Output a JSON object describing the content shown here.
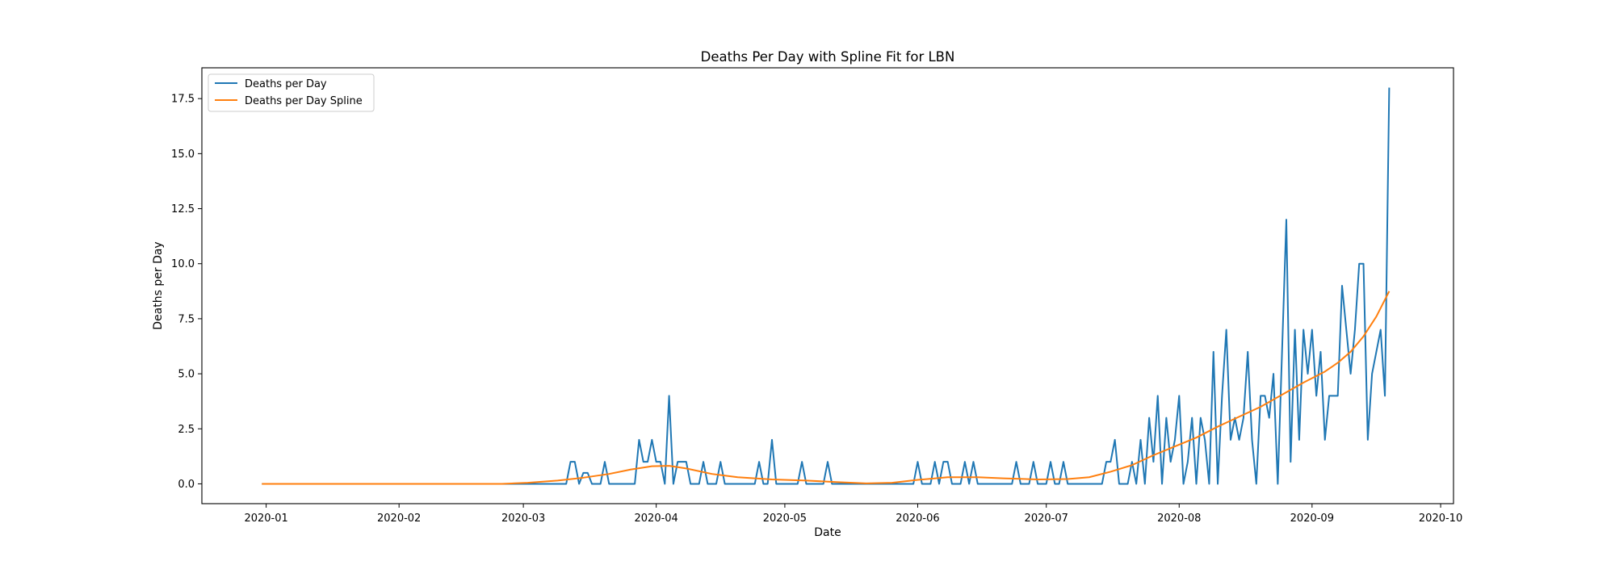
{
  "chart_data": {
    "type": "line",
    "title": "Deaths Per Day with Spline Fit for LBN",
    "xlabel": "Date",
    "ylabel": "Deaths per Day",
    "xlim": [
      "2019-12-17",
      "2020-10-04"
    ],
    "ylim": [
      -0.9,
      18.9
    ],
    "x_ticks": [
      "2020-01",
      "2020-02",
      "2020-03",
      "2020-04",
      "2020-05",
      "2020-06",
      "2020-07",
      "2020-08",
      "2020-09",
      "2020-10"
    ],
    "y_ticks": [
      "0.0",
      "2.5",
      "5.0",
      "7.5",
      "10.0",
      "12.5",
      "15.0",
      "17.5"
    ],
    "grid": false,
    "legend_position": "top-left",
    "series": [
      {
        "name": "Deaths per Day",
        "color": "#1f77b4",
        "points": [
          [
            "2019-12-31",
            0
          ],
          [
            "2020-03-11",
            0
          ],
          [
            "2020-03-12",
            1
          ],
          [
            "2020-03-13",
            1
          ],
          [
            "2020-03-14",
            0
          ],
          [
            "2020-03-15",
            0.5
          ],
          [
            "2020-03-16",
            0.5
          ],
          [
            "2020-03-17",
            0
          ],
          [
            "2020-03-18",
            0
          ],
          [
            "2020-03-19",
            0
          ],
          [
            "2020-03-20",
            1
          ],
          [
            "2020-03-21",
            0
          ],
          [
            "2020-03-27",
            0
          ],
          [
            "2020-03-28",
            2
          ],
          [
            "2020-03-29",
            1
          ],
          [
            "2020-03-30",
            1
          ],
          [
            "2020-03-31",
            2
          ],
          [
            "2020-04-01",
            1
          ],
          [
            "2020-04-02",
            1
          ],
          [
            "2020-04-03",
            0
          ],
          [
            "2020-04-04",
            4
          ],
          [
            "2020-04-05",
            0
          ],
          [
            "2020-04-06",
            1
          ],
          [
            "2020-04-07",
            1
          ],
          [
            "2020-04-08",
            1
          ],
          [
            "2020-04-09",
            0
          ],
          [
            "2020-04-11",
            0
          ],
          [
            "2020-04-12",
            1
          ],
          [
            "2020-04-13",
            0
          ],
          [
            "2020-04-15",
            0
          ],
          [
            "2020-04-16",
            1
          ],
          [
            "2020-04-17",
            0
          ],
          [
            "2020-04-24",
            0
          ],
          [
            "2020-04-25",
            1
          ],
          [
            "2020-04-26",
            0
          ],
          [
            "2020-04-27",
            0
          ],
          [
            "2020-04-28",
            2
          ],
          [
            "2020-04-29",
            0
          ],
          [
            "2020-05-04",
            0
          ],
          [
            "2020-05-05",
            1
          ],
          [
            "2020-05-06",
            0
          ],
          [
            "2020-05-10",
            0
          ],
          [
            "2020-05-11",
            1
          ],
          [
            "2020-05-12",
            0
          ],
          [
            "2020-05-31",
            0
          ],
          [
            "2020-06-01",
            1
          ],
          [
            "2020-06-02",
            0
          ],
          [
            "2020-06-04",
            0
          ],
          [
            "2020-06-05",
            1
          ],
          [
            "2020-06-06",
            0
          ],
          [
            "2020-06-07",
            1
          ],
          [
            "2020-06-08",
            1
          ],
          [
            "2020-06-09",
            0
          ],
          [
            "2020-06-11",
            0
          ],
          [
            "2020-06-12",
            1
          ],
          [
            "2020-06-13",
            0
          ],
          [
            "2020-06-14",
            1
          ],
          [
            "2020-06-15",
            0
          ],
          [
            "2020-06-23",
            0
          ],
          [
            "2020-06-24",
            1
          ],
          [
            "2020-06-25",
            0
          ],
          [
            "2020-06-27",
            0
          ],
          [
            "2020-06-28",
            1
          ],
          [
            "2020-06-29",
            0
          ],
          [
            "2020-07-01",
            0
          ],
          [
            "2020-07-02",
            1
          ],
          [
            "2020-07-03",
            0
          ],
          [
            "2020-07-04",
            0
          ],
          [
            "2020-07-05",
            1
          ],
          [
            "2020-07-06",
            0
          ],
          [
            "2020-07-14",
            0
          ],
          [
            "2020-07-15",
            1
          ],
          [
            "2020-07-16",
            1
          ],
          [
            "2020-07-17",
            2
          ],
          [
            "2020-07-18",
            0
          ],
          [
            "2020-07-20",
            0
          ],
          [
            "2020-07-21",
            1
          ],
          [
            "2020-07-22",
            0
          ],
          [
            "2020-07-23",
            2
          ],
          [
            "2020-07-24",
            0
          ],
          [
            "2020-07-25",
            3
          ],
          [
            "2020-07-26",
            1
          ],
          [
            "2020-07-27",
            4
          ],
          [
            "2020-07-28",
            0
          ],
          [
            "2020-07-29",
            3
          ],
          [
            "2020-07-30",
            1
          ],
          [
            "2020-07-31",
            2
          ],
          [
            "2020-08-01",
            4
          ],
          [
            "2020-08-02",
            0
          ],
          [
            "2020-08-03",
            1
          ],
          [
            "2020-08-04",
            3
          ],
          [
            "2020-08-05",
            0
          ],
          [
            "2020-08-06",
            3
          ],
          [
            "2020-08-07",
            2
          ],
          [
            "2020-08-08",
            0
          ],
          [
            "2020-08-09",
            6
          ],
          [
            "2020-08-10",
            0
          ],
          [
            "2020-08-11",
            4
          ],
          [
            "2020-08-12",
            7
          ],
          [
            "2020-08-13",
            2
          ],
          [
            "2020-08-14",
            3
          ],
          [
            "2020-08-15",
            2
          ],
          [
            "2020-08-16",
            3
          ],
          [
            "2020-08-17",
            6
          ],
          [
            "2020-08-18",
            2
          ],
          [
            "2020-08-19",
            0
          ],
          [
            "2020-08-20",
            4
          ],
          [
            "2020-08-21",
            4
          ],
          [
            "2020-08-22",
            3
          ],
          [
            "2020-08-23",
            5
          ],
          [
            "2020-08-24",
            0
          ],
          [
            "2020-08-25",
            6
          ],
          [
            "2020-08-26",
            12
          ],
          [
            "2020-08-27",
            1
          ],
          [
            "2020-08-28",
            7
          ],
          [
            "2020-08-29",
            2
          ],
          [
            "2020-08-30",
            7
          ],
          [
            "2020-08-31",
            5
          ],
          [
            "2020-09-01",
            7
          ],
          [
            "2020-09-02",
            4
          ],
          [
            "2020-09-03",
            6
          ],
          [
            "2020-09-04",
            2
          ],
          [
            "2020-09-05",
            4
          ],
          [
            "2020-09-06",
            4
          ],
          [
            "2020-09-07",
            4
          ],
          [
            "2020-09-08",
            9
          ],
          [
            "2020-09-09",
            7
          ],
          [
            "2020-09-10",
            5
          ],
          [
            "2020-09-11",
            7
          ],
          [
            "2020-09-12",
            10
          ],
          [
            "2020-09-13",
            10
          ],
          [
            "2020-09-14",
            2
          ],
          [
            "2020-09-15",
            5
          ],
          [
            "2020-09-16",
            6
          ],
          [
            "2020-09-17",
            7
          ],
          [
            "2020-09-18",
            4
          ],
          [
            "2020-09-19",
            18
          ]
        ]
      },
      {
        "name": "Deaths per Day Spline",
        "color": "#ff7f0e",
        "points": [
          [
            "2019-12-31",
            0
          ],
          [
            "2020-02-25",
            0
          ],
          [
            "2020-03-02",
            0.05
          ],
          [
            "2020-03-09",
            0.15
          ],
          [
            "2020-03-15",
            0.28
          ],
          [
            "2020-03-21",
            0.45
          ],
          [
            "2020-03-26",
            0.65
          ],
          [
            "2020-03-31",
            0.8
          ],
          [
            "2020-04-04",
            0.82
          ],
          [
            "2020-04-08",
            0.7
          ],
          [
            "2020-04-14",
            0.45
          ],
          [
            "2020-04-20",
            0.3
          ],
          [
            "2020-04-28",
            0.2
          ],
          [
            "2020-05-06",
            0.15
          ],
          [
            "2020-05-13",
            0.08
          ],
          [
            "2020-05-20",
            0.02
          ],
          [
            "2020-05-26",
            0.05
          ],
          [
            "2020-06-01",
            0.18
          ],
          [
            "2020-06-08",
            0.3
          ],
          [
            "2020-06-15",
            0.3
          ],
          [
            "2020-06-21",
            0.25
          ],
          [
            "2020-06-29",
            0.2
          ],
          [
            "2020-07-06",
            0.22
          ],
          [
            "2020-07-11",
            0.3
          ],
          [
            "2020-07-16",
            0.55
          ],
          [
            "2020-07-21",
            0.85
          ],
          [
            "2020-07-26",
            1.3
          ],
          [
            "2020-07-31",
            1.7
          ],
          [
            "2020-08-05",
            2.1
          ],
          [
            "2020-08-10",
            2.6
          ],
          [
            "2020-08-15",
            3.05
          ],
          [
            "2020-08-20",
            3.5
          ],
          [
            "2020-08-25",
            4.05
          ],
          [
            "2020-08-30",
            4.6
          ],
          [
            "2020-09-04",
            5.1
          ],
          [
            "2020-09-07",
            5.5
          ],
          [
            "2020-09-10",
            6.0
          ],
          [
            "2020-09-13",
            6.7
          ],
          [
            "2020-09-16",
            7.6
          ],
          [
            "2020-09-19",
            8.75
          ]
        ]
      }
    ]
  }
}
